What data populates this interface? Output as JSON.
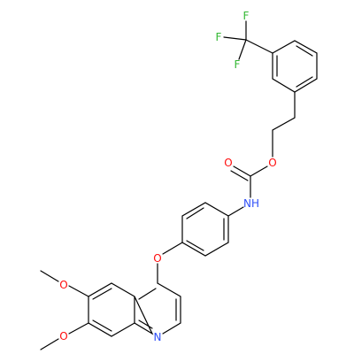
{
  "atoms": [
    {
      "label": "F"
    },
    {
      "label": "F"
    },
    {
      "label": "F"
    },
    {
      "label": "O"
    },
    {
      "label": "O"
    },
    {
      "label": "NH"
    },
    {
      "label": "O"
    },
    {
      "label": "O"
    },
    {
      "label": "O"
    },
    {
      "label": "N"
    }
  ]
}
